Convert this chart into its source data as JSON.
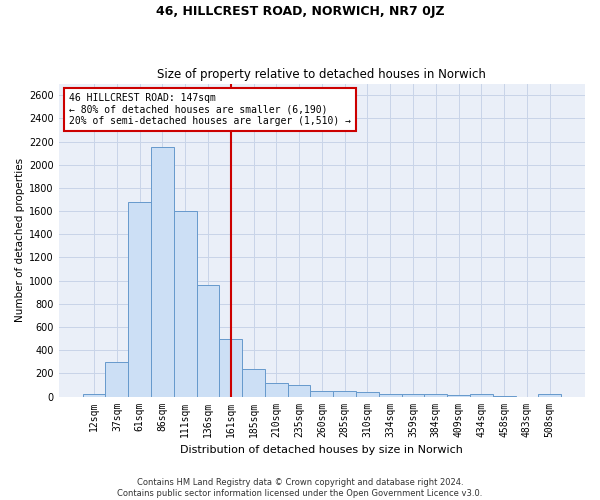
{
  "title": "46, HILLCREST ROAD, NORWICH, NR7 0JZ",
  "subtitle": "Size of property relative to detached houses in Norwich",
  "xlabel": "Distribution of detached houses by size in Norwich",
  "ylabel": "Number of detached properties",
  "footer_line1": "Contains HM Land Registry data © Crown copyright and database right 2024.",
  "footer_line2": "Contains public sector information licensed under the Open Government Licence v3.0.",
  "bar_categories": [
    "12sqm",
    "37sqm",
    "61sqm",
    "86sqm",
    "111sqm",
    "136sqm",
    "161sqm",
    "185sqm",
    "210sqm",
    "235sqm",
    "260sqm",
    "285sqm",
    "310sqm",
    "334sqm",
    "359sqm",
    "384sqm",
    "409sqm",
    "434sqm",
    "458sqm",
    "483sqm",
    "508sqm"
  ],
  "bar_values": [
    25,
    300,
    1680,
    2150,
    1600,
    960,
    500,
    240,
    120,
    100,
    50,
    45,
    35,
    20,
    25,
    20,
    10,
    25,
    5,
    0,
    25
  ],
  "bar_color": "#ccdff5",
  "bar_edge_color": "#6699cc",
  "property_line_x": 6.0,
  "property_label": "46 HILLCREST ROAD: 147sqm",
  "annotation_line2": "← 80% of detached houses are smaller (6,190)",
  "annotation_line3": "20% of semi-detached houses are larger (1,510) →",
  "annotation_box_color": "#cc0000",
  "vline_color": "#cc0000",
  "ylim_max": 2700,
  "yticks": [
    0,
    200,
    400,
    600,
    800,
    1000,
    1200,
    1400,
    1600,
    1800,
    2000,
    2200,
    2400,
    2600
  ],
  "grid_color": "#c8d4e8",
  "bg_color": "#eaeff8",
  "title_fontsize": 9,
  "subtitle_fontsize": 8.5,
  "ylabel_fontsize": 7.5,
  "xlabel_fontsize": 8,
  "tick_fontsize": 7,
  "annotation_fontsize": 7,
  "footer_fontsize": 6
}
